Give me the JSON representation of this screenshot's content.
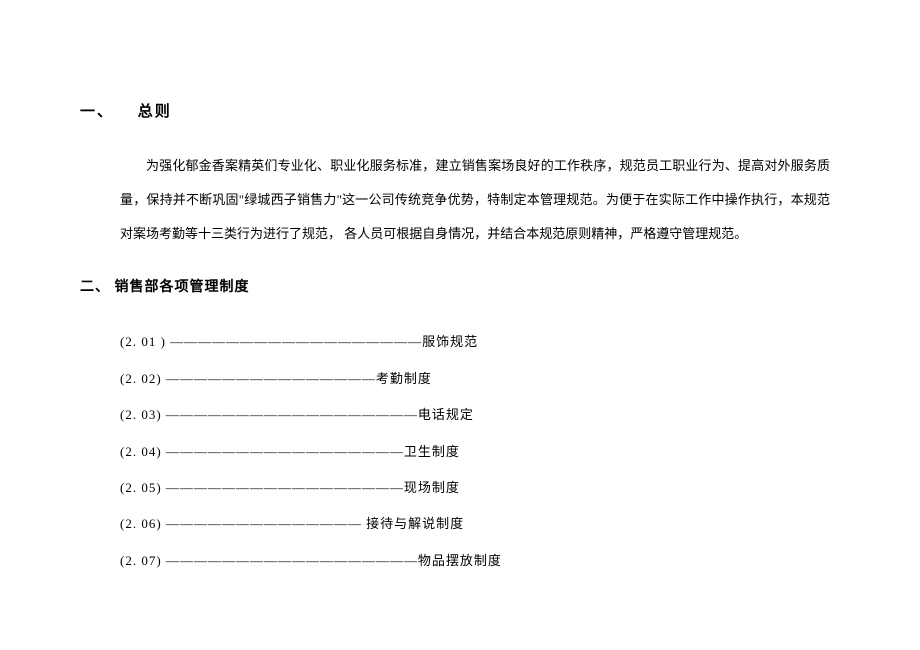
{
  "heading1": {
    "sectionNum": "一、",
    "title": "总则"
  },
  "bodyParagraph": "为强化郁金香案精英们专业化、职业化服务标准，建立销售案场良好的工作秩序，规范员工职业行为、提高对外服务质量，保持并不断巩固\"绿城西子销售力\"这一公司传统竞争优势，特制定本管理规范。为便于在实际工作中操作执行，本规范对案场考勤等十三类行为进行了规范， 各人员可根据自身情况，并结合本规范原则精神，严格遵守管理规范。",
  "heading2": {
    "sectionNum": "二、",
    "title": "销售部各项管理制度"
  },
  "tocItems": [
    {
      "code": "(2.  01  )",
      "separator": " ——————————————————",
      "title": "服饰规范"
    },
    {
      "code": "(2.   02)",
      "separator": "  ———————————————",
      "title": "考勤制度"
    },
    {
      "code": "(2.   03)",
      "separator": " ——————————————————",
      "title": "电话规定"
    },
    {
      "code": "(2.   04)",
      "separator": " —————————————————",
      "title": "卫生制度"
    },
    {
      "code": "(2.   05)",
      "separator": " —————————————————",
      "title": "现场制度"
    },
    {
      "code": "(2.  06)",
      "separator": " —————————————— ",
      "title": "接待与解说制度"
    },
    {
      "code": "(2.  07)",
      "separator": " ——————————————————",
      "title": "物品摆放制度"
    }
  ]
}
